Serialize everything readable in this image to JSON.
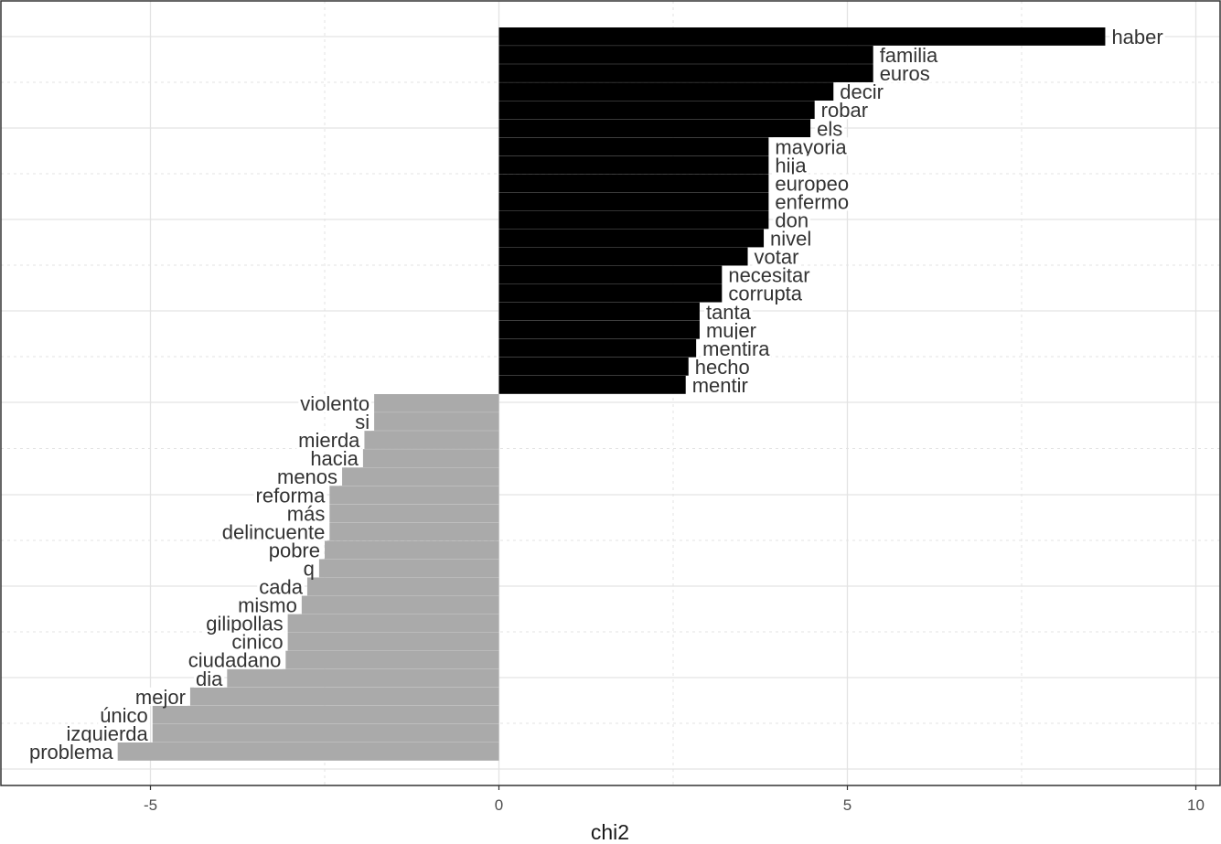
{
  "chart_data": {
    "type": "bar",
    "orientation": "horizontal",
    "xlabel": "chi2",
    "ylabel": "",
    "xlim": [
      -7.0,
      10.7
    ],
    "x_ticks": [
      "-5",
      "0",
      "5",
      "10"
    ],
    "x_tick_values": [
      -5,
      0,
      5,
      10
    ],
    "grid": true,
    "legend": "none",
    "colors": {
      "positive": "#000000",
      "negative": "#aaaaaa",
      "grid": "#e3e3e3",
      "panel_border": "#333333"
    },
    "categories": [
      "haber",
      "familia",
      "euros",
      "decir",
      "robar",
      "els",
      "mayoria",
      "hija",
      "europeo",
      "enfermo",
      "don",
      "nivel",
      "votar",
      "necesitar",
      "corrupta",
      "tanta",
      "mujer",
      "mentira",
      "hecho",
      "mentir",
      "violento",
      "si",
      "mierda",
      "hacia",
      "menos",
      "reforma",
      "más",
      "delincuente",
      "pobre",
      "q",
      "cada",
      "mismo",
      "gilipollas",
      "cinico",
      "ciudadano",
      "dia",
      "mejor",
      "único",
      "izquierda",
      "problema"
    ],
    "values": [
      8.7,
      5.37,
      5.37,
      4.8,
      4.53,
      4.47,
      3.87,
      3.87,
      3.87,
      3.87,
      3.87,
      3.8,
      3.57,
      3.2,
      3.2,
      2.88,
      2.88,
      2.83,
      2.72,
      2.68,
      -1.79,
      -1.79,
      -1.93,
      -1.95,
      -2.25,
      -2.43,
      -2.43,
      -2.43,
      -2.5,
      -2.58,
      -2.75,
      -2.83,
      -3.03,
      -3.03,
      -3.06,
      -3.9,
      -4.43,
      -4.97,
      -4.97,
      -5.47
    ]
  }
}
